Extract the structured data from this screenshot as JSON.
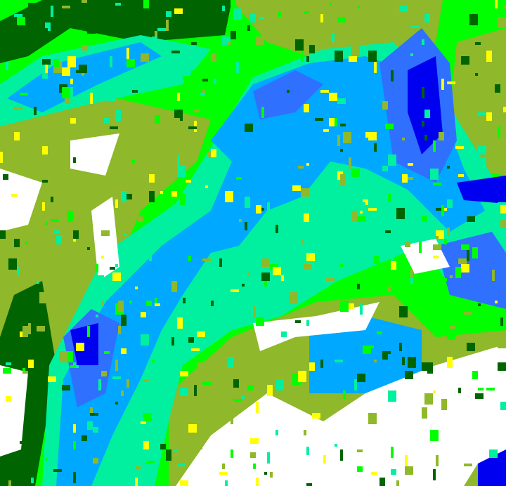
{
  "map": {
    "type": "classified raster",
    "palette": {
      "olive": "#8fb82a",
      "bright_green": "#00ff00",
      "dark_green": "#006400",
      "aqua_green": "#00f0a0",
      "light_blue": "#00a8ff",
      "blue": "#3070ff",
      "dark_blue": "#0000f0",
      "white": "#ffffff",
      "yellow": "#ffff00"
    }
  }
}
